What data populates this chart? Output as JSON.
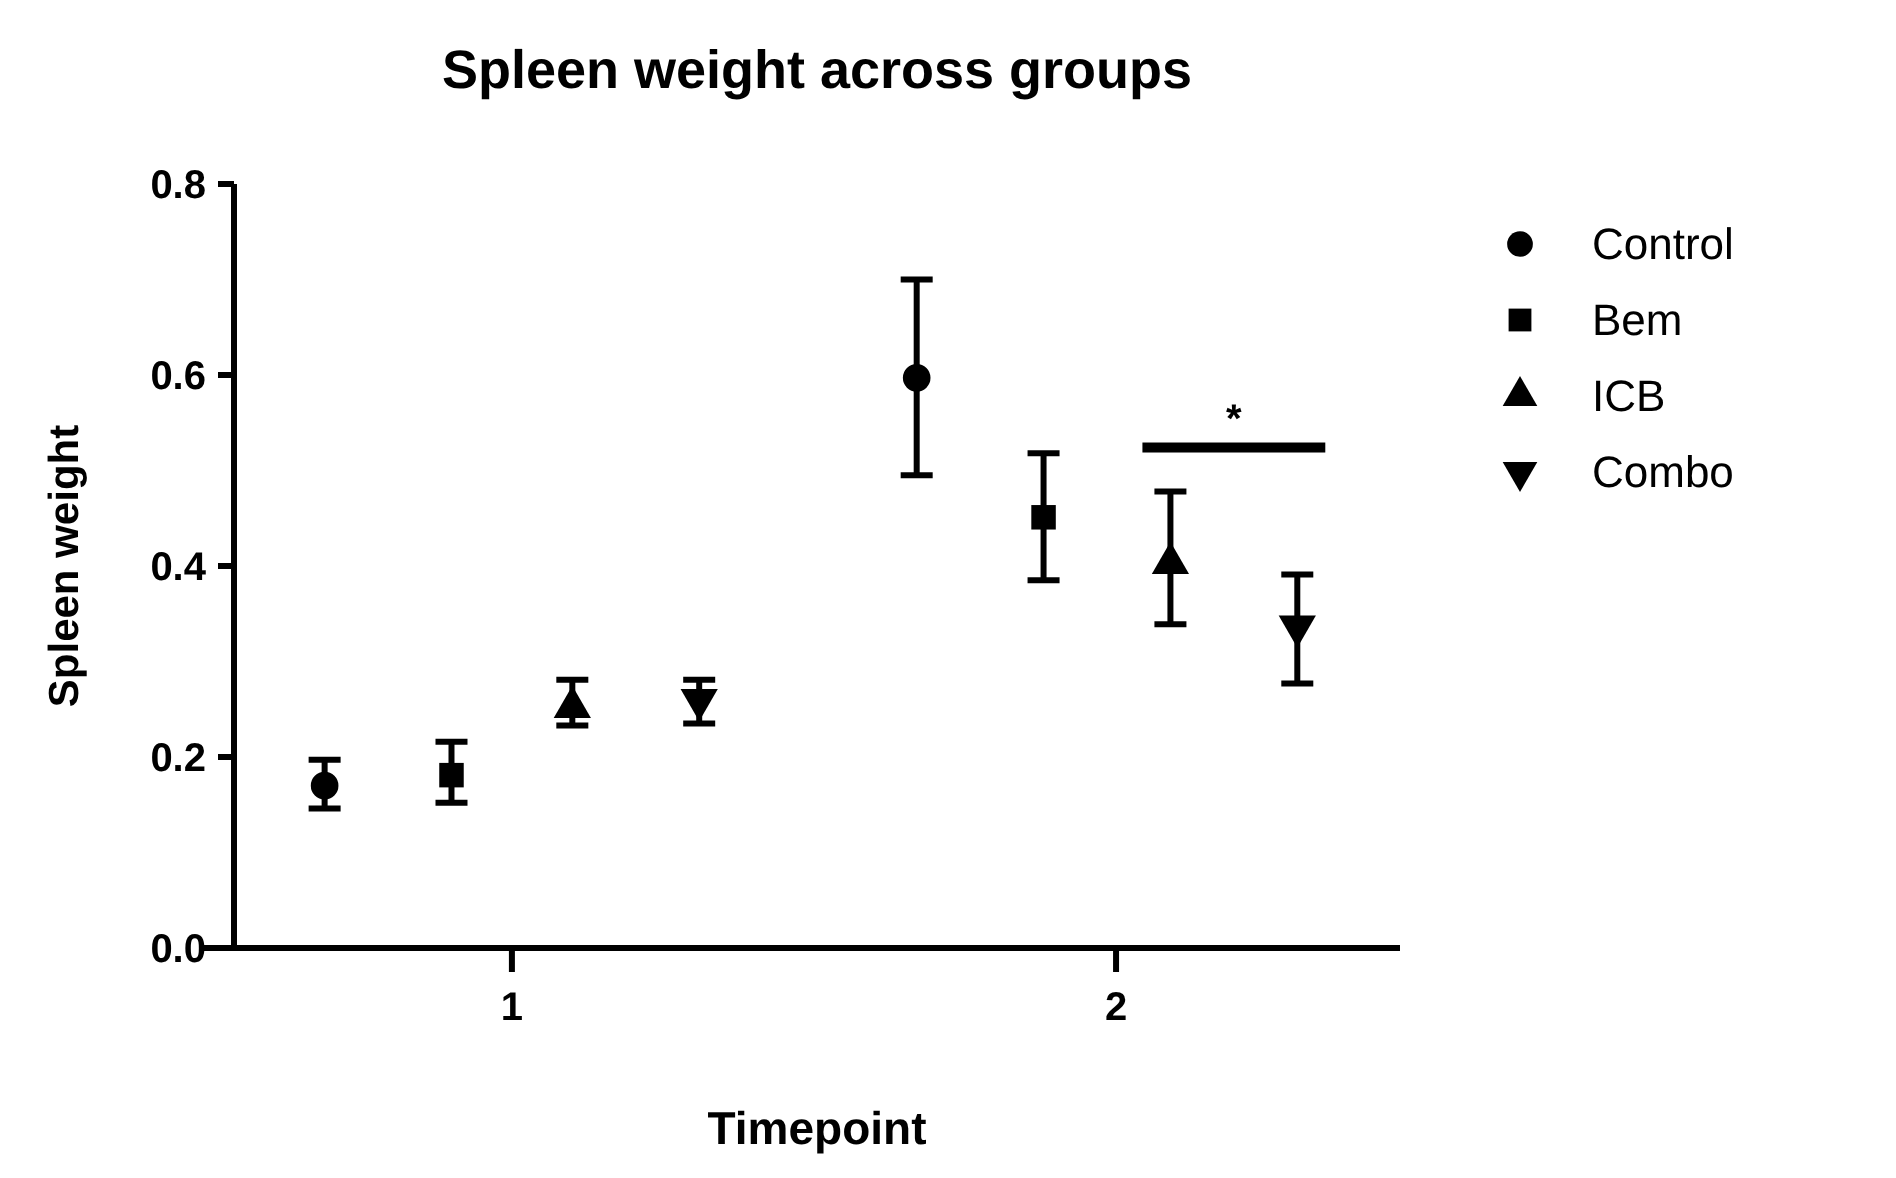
{
  "chart_data": {
    "type": "scatter",
    "title": "Spleen weight across groups",
    "xlabel": "Timepoint",
    "ylabel": "Spleen weight",
    "xlim": [
      0.54,
      2.47
    ],
    "xticks": [
      1,
      2
    ],
    "ylim": [
      0,
      0.8
    ],
    "yticks": [
      {
        "value": 0,
        "label": "0.0"
      },
      0.2,
      0.4,
      0.6,
      0.8
    ],
    "legend": "right",
    "grid": false,
    "annotations": [
      "*"
    ],
    "series": [
      {
        "name": "Control",
        "color": "#000000",
        "marker": "circle",
        "x": [
          0.69,
          1.67
        ],
        "values": [
          0.17,
          0.597
        ],
        "errors": [
          [
            0.146,
            0.197
          ],
          [
            0.495,
            0.7
          ]
        ]
      },
      {
        "name": "Bem",
        "color": "#000000",
        "marker": "square",
        "x": [
          0.9,
          1.88
        ],
        "values": [
          0.181,
          0.451
        ],
        "errors": [
          [
            0.152,
            0.216
          ],
          [
            0.385,
            0.518
          ]
        ]
      },
      {
        "name": "ICB",
        "color": "#000000",
        "marker": "triangle",
        "x": [
          1.1,
          2.09
        ],
        "values": [
          0.252,
          0.403
        ],
        "errors": [
          [
            0.233,
            0.281
          ],
          [
            0.339,
            0.478
          ]
        ]
      },
      {
        "name": "Combo",
        "color": "#000000",
        "marker": "triangle-down",
        "x": [
          1.31,
          2.3
        ],
        "values": [
          0.26,
          0.337
        ],
        "errors": [
          [
            0.235,
            0.281
          ],
          [
            0.277,
            0.391
          ]
        ]
      }
    ]
  }
}
